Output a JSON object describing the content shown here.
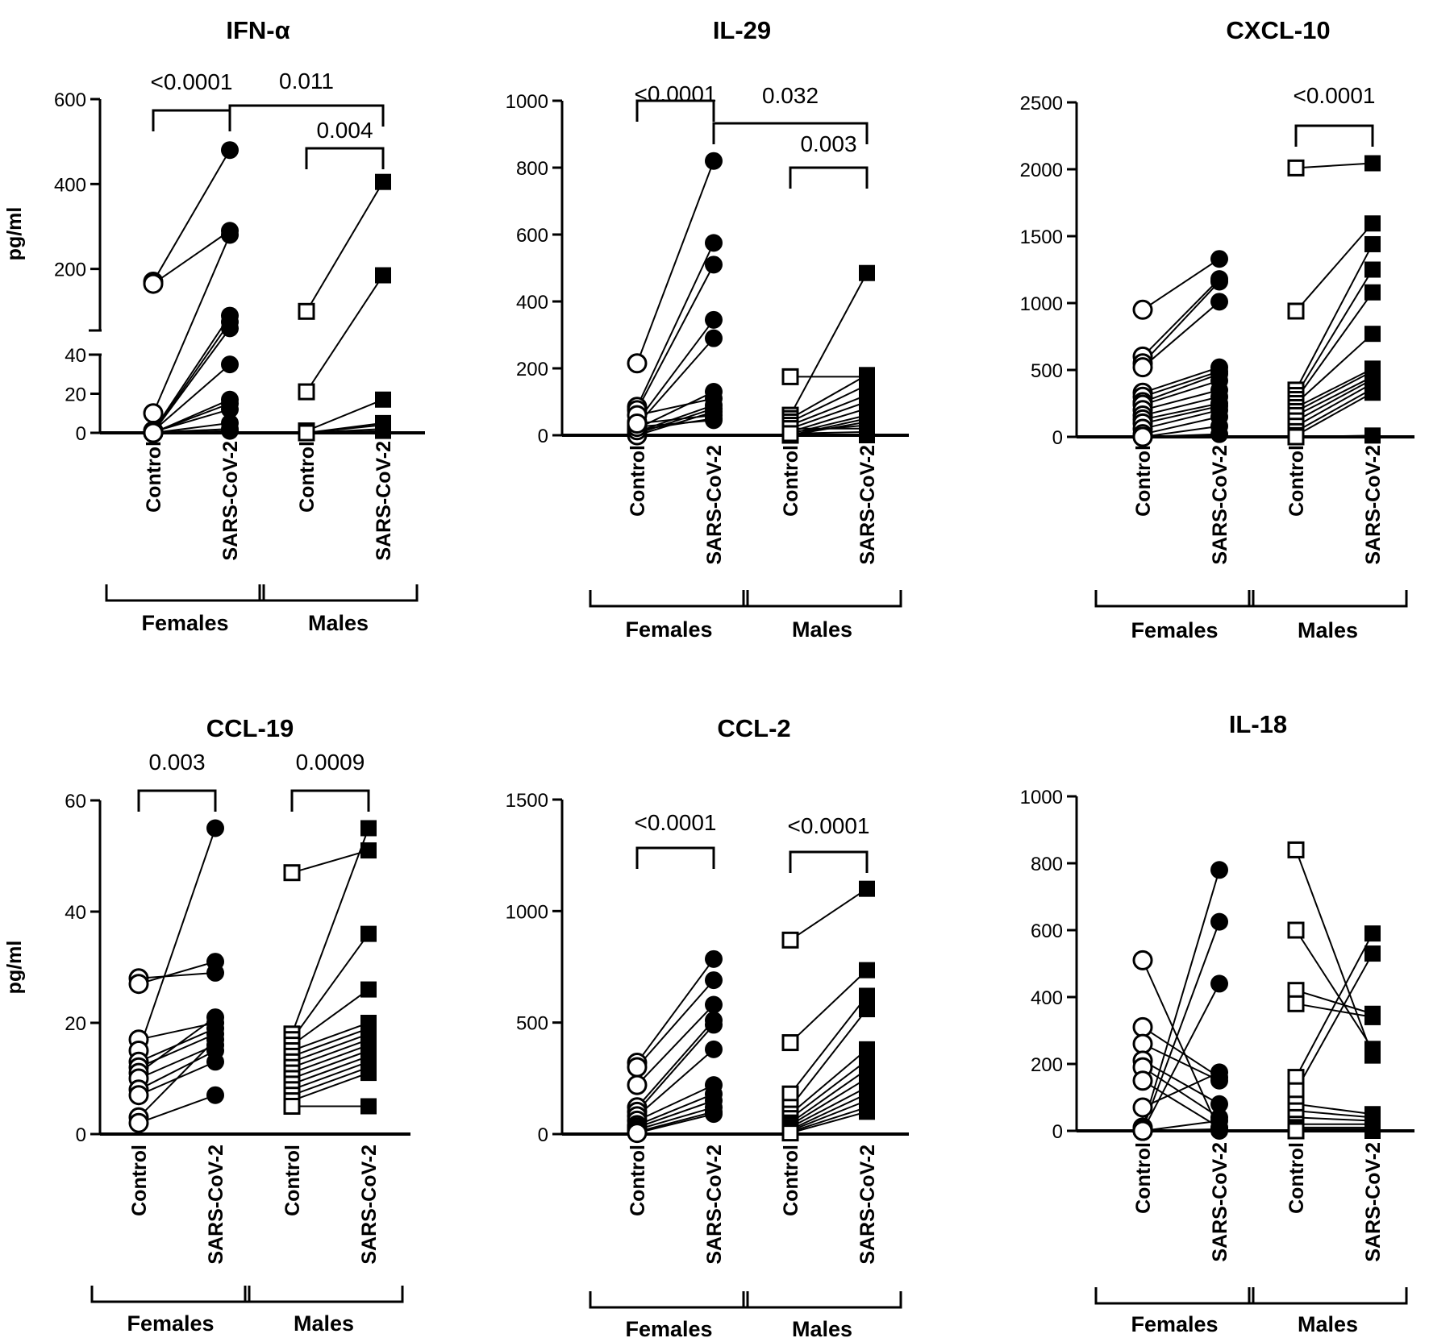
{
  "colors": {
    "ink": "#000000",
    "background": "#ffffff"
  },
  "chart_data": [
    {
      "id": "ifna",
      "type": "paired-scatter",
      "title": "IFN-α",
      "ylabel": "pg/ml",
      "axis_break": true,
      "ylim_lower": [
        0,
        40
      ],
      "ylim_upper": [
        55,
        600
      ],
      "yticks": [
        0,
        20,
        40,
        200,
        400,
        600
      ],
      "ytick_labels": [
        "0",
        "20",
        "40",
        "200",
        "400",
        "600"
      ],
      "categories": [
        "Control",
        "SARS-CoV-2",
        "Control",
        "SARS-CoV-2"
      ],
      "groups": [
        "Females",
        "Males"
      ],
      "brackets": [
        {
          "from": 0,
          "to": 1,
          "label": "<0.0001"
        },
        {
          "from": 1,
          "to": 3,
          "label": "0.011"
        },
        {
          "from": 2,
          "to": 3,
          "label": "0.004"
        }
      ],
      "pairs": [
        [
          [
            170,
            480
          ],
          [
            165,
            290
          ],
          [
            10,
            280
          ],
          [
            1,
            90
          ],
          [
            0.5,
            75
          ],
          [
            0.3,
            60
          ],
          [
            1,
            35
          ],
          [
            0,
            17
          ],
          [
            0.2,
            15
          ],
          [
            0.5,
            12
          ],
          [
            0,
            5
          ],
          [
            0.2,
            2
          ],
          [
            0,
            1
          ]
        ],
        [
          [
            100,
            405
          ],
          [
            21,
            185
          ],
          [
            1,
            17
          ],
          [
            0,
            5
          ],
          [
            0,
            4
          ],
          [
            0,
            2
          ],
          [
            0,
            1
          ]
        ]
      ]
    },
    {
      "id": "il29",
      "type": "paired-scatter",
      "title": "IL-29",
      "ylabel": "",
      "ylim": [
        0,
        1000
      ],
      "yticks": [
        0,
        200,
        400,
        600,
        800,
        1000
      ],
      "ytick_labels": [
        "0",
        "200",
        "400",
        "600",
        "800",
        "1000"
      ],
      "categories": [
        "Control",
        "SARS-CoV-2",
        "Control",
        "SARS-CoV-2"
      ],
      "groups": [
        "Females",
        "Males"
      ],
      "brackets": [
        {
          "from": 0,
          "to": 1,
          "label": "<0.0001"
        },
        {
          "from": 1,
          "to": 3,
          "label": "0.032"
        },
        {
          "from": 2,
          "to": 3,
          "label": "0.003"
        }
      ],
      "pairs": [
        [
          [
            215,
            820
          ],
          [
            85,
            575
          ],
          [
            75,
            510
          ],
          [
            40,
            345
          ],
          [
            30,
            290
          ],
          [
            20,
            130
          ],
          [
            60,
            110
          ],
          [
            10,
            90
          ],
          [
            5,
            80
          ],
          [
            0,
            70
          ],
          [
            15,
            50
          ],
          [
            25,
            45
          ],
          [
            35,
            60
          ]
        ],
        [
          [
            175,
            175
          ],
          [
            60,
            485
          ],
          [
            50,
            180
          ],
          [
            40,
            150
          ],
          [
            30,
            120
          ],
          [
            20,
            100
          ],
          [
            10,
            80
          ],
          [
            5,
            60
          ],
          [
            0,
            50
          ],
          [
            0,
            40
          ],
          [
            10,
            30
          ],
          [
            20,
            20
          ],
          [
            0,
            0
          ],
          [
            5,
            10
          ]
        ]
      ]
    },
    {
      "id": "cxcl10",
      "type": "paired-scatter",
      "title": "CXCL-10",
      "ylabel": "",
      "ylim": [
        0,
        2500
      ],
      "yticks": [
        0,
        500,
        1000,
        1500,
        2000,
        2500
      ],
      "ytick_labels": [
        "0",
        "500",
        "1000",
        "1500",
        "2000",
        "2500"
      ],
      "categories": [
        "Control",
        "SARS-CoV-2",
        "Control",
        "SARS-CoV-2"
      ],
      "groups": [
        "Females",
        "Males"
      ],
      "brackets": [
        {
          "from": 2,
          "to": 3,
          "label": "<0.0001"
        }
      ],
      "pairs": [
        [
          [
            950,
            1330
          ],
          [
            600,
            1180
          ],
          [
            550,
            1160
          ],
          [
            520,
            1010
          ],
          [
            330,
            520
          ],
          [
            300,
            490
          ],
          [
            260,
            470
          ],
          [
            240,
            420
          ],
          [
            200,
            350
          ],
          [
            160,
            300
          ],
          [
            130,
            250
          ],
          [
            100,
            230
          ],
          [
            60,
            200
          ],
          [
            20,
            150
          ],
          [
            0,
            80
          ],
          [
            0,
            20
          ]
        ],
        [
          [
            2010,
            2045
          ],
          [
            940,
            1595
          ],
          [
            350,
            1440
          ],
          [
            310,
            1250
          ],
          [
            280,
            1080
          ],
          [
            250,
            770
          ],
          [
            220,
            510
          ],
          [
            190,
            490
          ],
          [
            160,
            450
          ],
          [
            120,
            430
          ],
          [
            80,
            400
          ],
          [
            40,
            360
          ],
          [
            10,
            330
          ],
          [
            0,
            10
          ]
        ]
      ]
    },
    {
      "id": "ccl19",
      "type": "paired-scatter",
      "title": "CCL-19",
      "ylabel": "pg/ml",
      "ylim": [
        0,
        60
      ],
      "yticks": [
        0,
        20,
        40,
        60
      ],
      "ytick_labels": [
        "0",
        "20",
        "40",
        "60"
      ],
      "categories": [
        "Control",
        "SARS-CoV-2",
        "Control",
        "SARS-CoV-2"
      ],
      "groups": [
        "Females",
        "Males"
      ],
      "brackets": [
        {
          "from": 0,
          "to": 1,
          "label": "0.003"
        },
        {
          "from": 2,
          "to": 3,
          "label": "0.0009"
        }
      ],
      "pairs": [
        [
          [
            28,
            29
          ],
          [
            27,
            31
          ],
          [
            17,
            20
          ],
          [
            15,
            55
          ],
          [
            13,
            19
          ],
          [
            12,
            18
          ],
          [
            11,
            21
          ],
          [
            10,
            16
          ],
          [
            8,
            15
          ],
          [
            7,
            13
          ],
          [
            3,
            17
          ],
          [
            2,
            7
          ]
        ],
        [
          [
            47,
            51
          ],
          [
            18,
            55
          ],
          [
            17,
            36
          ],
          [
            16,
            26
          ],
          [
            15,
            20
          ],
          [
            14,
            19
          ],
          [
            13,
            18
          ],
          [
            12,
            17
          ],
          [
            11,
            16
          ],
          [
            10,
            15
          ],
          [
            9,
            14
          ],
          [
            8,
            13
          ],
          [
            7,
            12
          ],
          [
            6,
            11
          ],
          [
            5,
            5
          ]
        ]
      ]
    },
    {
      "id": "ccl2",
      "type": "paired-scatter",
      "title": "CCL-2",
      "ylabel": "",
      "ylim": [
        0,
        1500
      ],
      "yticks": [
        0,
        500,
        1000,
        1500
      ],
      "ytick_labels": [
        "0",
        "500",
        "1000",
        "1500"
      ],
      "categories": [
        "Control",
        "SARS-CoV-2",
        "Control",
        "SARS-CoV-2"
      ],
      "groups": [
        "Females",
        "Males"
      ],
      "brackets": [
        {
          "from": 0,
          "to": 1,
          "label": "<0.0001"
        },
        {
          "from": 2,
          "to": 3,
          "label": "<0.0001"
        }
      ],
      "pairs": [
        [
          [
            320,
            785
          ],
          [
            300,
            690
          ],
          [
            220,
            580
          ],
          [
            120,
            510
          ],
          [
            100,
            490
          ],
          [
            80,
            380
          ],
          [
            60,
            220
          ],
          [
            40,
            180
          ],
          [
            30,
            150
          ],
          [
            20,
            120
          ],
          [
            10,
            100
          ],
          [
            5,
            90
          ]
        ],
        [
          [
            870,
            1100
          ],
          [
            410,
            735
          ],
          [
            180,
            620
          ],
          [
            120,
            560
          ],
          [
            90,
            380
          ],
          [
            70,
            330
          ],
          [
            50,
            290
          ],
          [
            40,
            250
          ],
          [
            30,
            210
          ],
          [
            20,
            180
          ],
          [
            15,
            150
          ],
          [
            10,
            120
          ],
          [
            5,
            100
          ]
        ]
      ]
    },
    {
      "id": "il18",
      "type": "paired-scatter",
      "title": "IL-18",
      "ylabel": "",
      "ylim": [
        0,
        1000
      ],
      "yticks": [
        0,
        200,
        400,
        600,
        800,
        1000
      ],
      "ytick_labels": [
        "0",
        "200",
        "400",
        "600",
        "800",
        "1000"
      ],
      "categories": [
        "Control",
        "SARS-CoV-2",
        "Control",
        "SARS-CoV-2"
      ],
      "groups": [
        "Females",
        "Males"
      ],
      "brackets": [],
      "pairs": [
        [
          [
            510,
            0
          ],
          [
            310,
            160
          ],
          [
            260,
            150
          ],
          [
            210,
            80
          ],
          [
            190,
            40
          ],
          [
            150,
            10
          ],
          [
            70,
            175
          ],
          [
            10,
            780
          ],
          [
            5,
            625
          ],
          [
            0,
            440
          ],
          [
            0,
            30
          ],
          [
            0,
            5
          ]
        ],
        [
          [
            840,
            225
          ],
          [
            600,
            245
          ],
          [
            420,
            350
          ],
          [
            380,
            340
          ],
          [
            160,
            590
          ],
          [
            120,
            530
          ],
          [
            80,
            50
          ],
          [
            60,
            40
          ],
          [
            40,
            30
          ],
          [
            20,
            20
          ],
          [
            10,
            10
          ],
          [
            5,
            5
          ],
          [
            0,
            0
          ]
        ]
      ]
    }
  ]
}
